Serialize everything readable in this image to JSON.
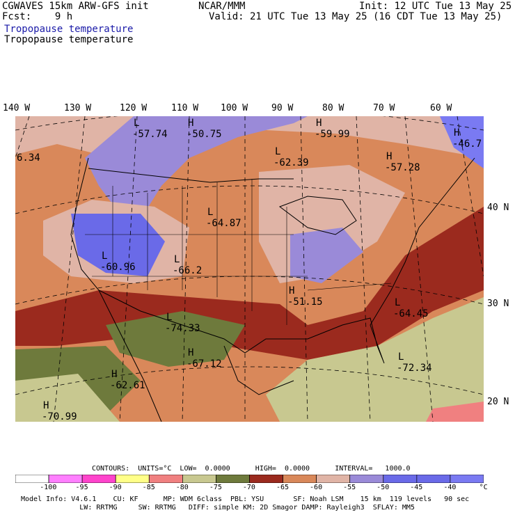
{
  "header": {
    "model": "CGWAVES 15km ARW-GFS init",
    "forecast": "Fcst:    9 h",
    "org": "NCAR/MMM",
    "init": "Init: 12 UTC Tue 13 May 25",
    "valid": "Valid: 21 UTC Tue 13 May 25 (16 CDT Tue 13 May 25)",
    "field_title_1": "Tropopause temperature",
    "field_title_2": "Tropopause temperature"
  },
  "axes": {
    "longitudes": [
      "140 W",
      "130 W",
      "120 W",
      "110 W",
      "100 W",
      "90 W",
      "80 W",
      "70 W",
      "60 W"
    ],
    "latitudes": [
      "40 N",
      "30 N",
      "20 N"
    ]
  },
  "map_labels": [
    {
      "type": "L",
      "value": "-57.74"
    },
    {
      "type": "H",
      "value": "-50.75"
    },
    {
      "type": "H",
      "value": "-59.99"
    },
    {
      "type": "H",
      "value": "-46.7"
    },
    {
      "type": "L",
      "value": "-62.39"
    },
    {
      "type": "H",
      "value": "-57.28"
    },
    {
      "type": "L",
      "value": "-64.87"
    },
    {
      "type": "",
      "value": "6.34"
    },
    {
      "type": "L",
      "value": "-60.96"
    },
    {
      "type": "L",
      "value": "-66.2"
    },
    {
      "type": "H",
      "value": "-51.15"
    },
    {
      "type": "L",
      "value": "-64.45"
    },
    {
      "type": "L",
      "value": "-74.33"
    },
    {
      "type": "H",
      "value": "-67.12"
    },
    {
      "type": "L",
      "value": "-72.34"
    },
    {
      "type": "H",
      "value": "-62.61"
    },
    {
      "type": "H",
      "value": "-70.99"
    }
  ],
  "contours": {
    "line": "CONTOURS:  UNITS=°C  LOW=  0.0000      HIGH=  0.0000      INTERVAL=   1000.0"
  },
  "legend": {
    "colors": [
      "#ffffff",
      "#ff7fff",
      "#ff44cc",
      "#ffff88",
      "#f08080",
      "#c8c890",
      "#6e7a3c",
      "#9b2a1e",
      "#d9885a",
      "#e0b4a6",
      "#9a8ad8",
      "#6a6ae8",
      "#6a6ae8",
      "#7a7af2"
    ],
    "ticks": [
      "-100",
      "-95",
      "-90",
      "-85",
      "-80",
      "-75",
      "-70",
      "-65",
      "-60",
      "-55",
      "-50",
      "-45",
      "-40",
      "°C"
    ]
  },
  "footer": {
    "line1": "Model Info: V4.6.1    CU: KF      MP: WDM 6class  PBL: YSU       SF: Noah LSM    15 km  119 levels   90 sec",
    "line2": "              LW: RRTMG     SW: RRTMG   DIFF: simple KM: 2D Smagor DAMP: Rayleigh3  SFLAY: MM5"
  }
}
